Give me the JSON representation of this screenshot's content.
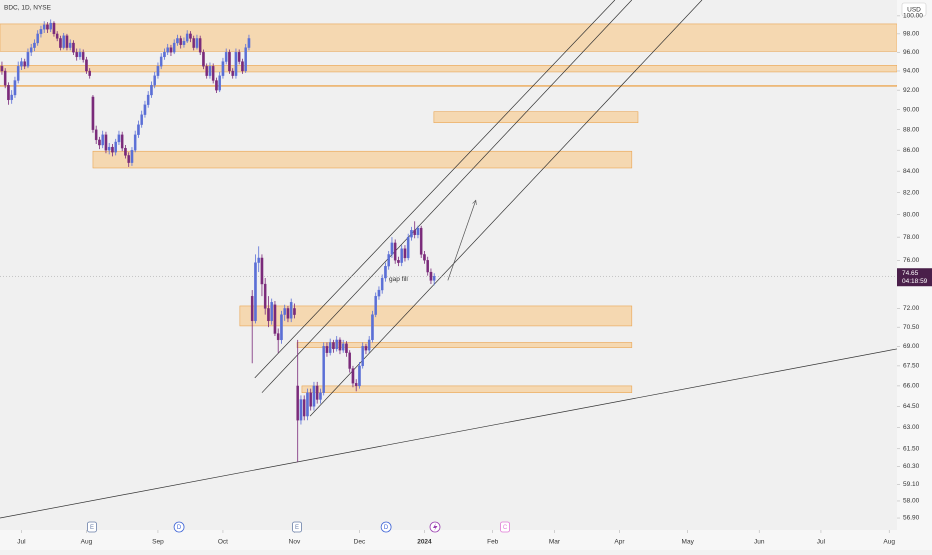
{
  "chart_data": {
    "type": "candlestick",
    "title": "BDC, 1D, NYSE",
    "currency": "USD",
    "log_scale": true,
    "ylim": [
      56.14,
      101.8
    ],
    "yticks": [
      {
        "value": 100,
        "label": "100.00"
      },
      {
        "value": 98,
        "label": "98.00"
      },
      {
        "value": 96,
        "label": "96.00"
      },
      {
        "value": 94,
        "label": "94.00"
      },
      {
        "value": 92,
        "label": "92.00"
      },
      {
        "value": 90,
        "label": "90.00"
      },
      {
        "value": 88,
        "label": "88.00"
      },
      {
        "value": 86,
        "label": "86.00"
      },
      {
        "value": 84,
        "label": "84.00"
      },
      {
        "value": 82,
        "label": "82.00"
      },
      {
        "value": 80,
        "label": "80.00"
      },
      {
        "value": 78,
        "label": "78.00"
      },
      {
        "value": 76,
        "label": "76.00"
      },
      {
        "value": 72,
        "label": "72.00"
      },
      {
        "value": 70.5,
        "label": "70.50"
      },
      {
        "value": 69,
        "label": "69.00"
      },
      {
        "value": 67.5,
        "label": "67.50"
      },
      {
        "value": 66,
        "label": "66.00"
      },
      {
        "value": 64.5,
        "label": "64.50"
      },
      {
        "value": 63,
        "label": "63.00"
      },
      {
        "value": 61.5,
        "label": "61.50"
      },
      {
        "value": 60.3,
        "label": "60.30"
      },
      {
        "value": 59.1,
        "label": "59.10"
      },
      {
        "value": 58,
        "label": "58.00"
      },
      {
        "value": 56.9,
        "label": "56.90"
      }
    ],
    "xlim": [
      -0.6,
      275.4
    ],
    "xticks": [
      {
        "value": 6,
        "label": "Jul"
      },
      {
        "value": 26,
        "label": "Aug"
      },
      {
        "value": 48,
        "label": "Sep"
      },
      {
        "value": 68,
        "label": "Oct"
      },
      {
        "value": 90,
        "label": "Nov"
      },
      {
        "value": 110,
        "label": "Dec"
      },
      {
        "value": 130,
        "label": "2024"
      },
      {
        "value": 151,
        "label": "Feb"
      },
      {
        "value": 170,
        "label": "Mar"
      },
      {
        "value": 190,
        "label": "Apr"
      },
      {
        "value": 211,
        "label": "May"
      },
      {
        "value": 233,
        "label": "Jun"
      },
      {
        "value": 252,
        "label": "Jul"
      },
      {
        "value": 273,
        "label": "Aug"
      }
    ],
    "up_color": "#5b6fd6",
    "down_color": "#7a2a7a",
    "ohlc": [
      [
        94.5,
        95,
        93.6,
        94
      ],
      [
        94,
        94.3,
        92.2,
        92.5
      ],
      [
        92.5,
        92.8,
        90.5,
        91
      ],
      [
        91,
        92,
        90.6,
        91.5
      ],
      [
        91.5,
        93.4,
        91.2,
        93
      ],
      [
        93,
        95,
        92.7,
        94.5
      ],
      [
        94.5,
        95.4,
        94.1,
        95
      ],
      [
        95,
        95.3,
        94.2,
        94.5
      ],
      [
        94.5,
        96.4,
        94.3,
        96
      ],
      [
        96,
        96.9,
        95.6,
        96.5
      ],
      [
        96.5,
        97.4,
        96.1,
        97
      ],
      [
        97,
        98.4,
        96.7,
        98
      ],
      [
        98,
        98.9,
        97.6,
        98.5
      ],
      [
        98.5,
        99.4,
        98.1,
        99
      ],
      [
        99,
        99.3,
        98.1,
        98.5
      ],
      [
        98.5,
        99.6,
        98.2,
        99.2
      ],
      [
        99.2,
        99.4,
        97.7,
        98
      ],
      [
        98,
        98.3,
        97.2,
        97.5
      ],
      [
        97.5,
        97.8,
        96.2,
        96.5
      ],
      [
        96.5,
        98.1,
        96.3,
        97.8
      ],
      [
        97.8,
        98,
        96.2,
        96.5
      ],
      [
        96.5,
        97.4,
        96.2,
        97
      ],
      [
        97,
        97.3,
        95.7,
        96
      ],
      [
        96,
        96.4,
        95.1,
        95.5
      ],
      [
        95.5,
        96.4,
        95.2,
        96
      ],
      [
        96,
        96.3,
        94.9,
        95.2
      ],
      [
        95.2,
        95.5,
        93.7,
        94
      ],
      [
        94,
        94.3,
        93.2,
        93.5
      ],
      [
        91.3,
        91.5,
        87.7,
        88
      ],
      [
        88,
        88.4,
        86.6,
        87
      ],
      [
        87,
        87.3,
        86.1,
        86.5
      ],
      [
        86.5,
        87.9,
        86.2,
        87.5
      ],
      [
        87.5,
        87.8,
        85.7,
        86
      ],
      [
        86,
        86.7,
        85.6,
        86.3
      ],
      [
        86.3,
        86.6,
        85.4,
        85.8
      ],
      [
        85.8,
        87.1,
        85.5,
        86.8
      ],
      [
        86.8,
        87.9,
        86.5,
        87.5
      ],
      [
        87.5,
        87.8,
        85.9,
        86.2
      ],
      [
        86.2,
        86.5,
        85.2,
        85.5
      ],
      [
        85.5,
        85.8,
        84.4,
        84.8
      ],
      [
        84.8,
        86.3,
        84.5,
        86
      ],
      [
        86,
        87.9,
        85.8,
        87.5
      ],
      [
        87.5,
        88.9,
        87.2,
        88.5
      ],
      [
        88.5,
        89.9,
        88.2,
        89.5
      ],
      [
        89.5,
        90.9,
        89.2,
        90.5
      ],
      [
        90.5,
        91.9,
        90.2,
        91.5
      ],
      [
        91.5,
        92.9,
        91.2,
        92.5
      ],
      [
        92.5,
        93.9,
        92.2,
        93.5
      ],
      [
        93.5,
        94.9,
        93.2,
        94.5
      ],
      [
        94.5,
        95.9,
        94.2,
        95.5
      ],
      [
        95.5,
        96.4,
        95.2,
        96
      ],
      [
        96,
        96.9,
        95.7,
        96.5
      ],
      [
        96.5,
        96.8,
        95.6,
        96
      ],
      [
        96,
        97.4,
        95.8,
        97
      ],
      [
        97,
        97.9,
        96.7,
        97.5
      ],
      [
        97.5,
        97.8,
        96.4,
        96.8
      ],
      [
        96.8,
        97.6,
        96.5,
        97.2
      ],
      [
        97.2,
        98.4,
        97,
        98
      ],
      [
        98,
        98.3,
        97.1,
        97.5
      ],
      [
        97.5,
        97.8,
        96.2,
        96.5
      ],
      [
        96.5,
        97.9,
        96.3,
        97.5
      ],
      [
        97.5,
        97.8,
        95.7,
        96
      ],
      [
        96,
        96.3,
        94.2,
        94.5
      ],
      [
        94.5,
        94.8,
        93.2,
        93.5
      ],
      [
        93.5,
        94.9,
        93.2,
        94.5
      ],
      [
        94.5,
        94.8,
        92.7,
        93
      ],
      [
        93,
        93.3,
        91.7,
        92
      ],
      [
        92,
        93.9,
        91.8,
        93.5
      ],
      [
        93.5,
        95.4,
        93.2,
        95
      ],
      [
        95,
        96.4,
        94.7,
        96
      ],
      [
        96,
        96.3,
        93.7,
        94
      ],
      [
        94,
        94.3,
        93.2,
        93.5
      ],
      [
        93.5,
        96.4,
        93.2,
        96
      ],
      [
        96,
        96.3,
        94.7,
        95
      ],
      [
        95,
        95.3,
        93.7,
        94
      ],
      [
        94,
        96.9,
        93.8,
        96.5
      ],
      [
        96.5,
        97.9,
        96.2,
        97.5
      ],
      [
        73,
        73.5,
        67.7,
        71
      ],
      [
        71,
        76.5,
        70.8,
        75.8
      ],
      [
        75.8,
        77.2,
        75,
        76.2
      ],
      [
        76.2,
        76.5,
        73,
        74
      ],
      [
        74,
        74.5,
        71.5,
        72
      ],
      [
        72,
        73,
        70.5,
        71
      ],
      [
        71,
        72.8,
        70.7,
        72.5
      ],
      [
        72.3,
        72.6,
        69.8,
        70
      ],
      [
        70,
        70.4,
        68.5,
        69.5
      ],
      [
        69.5,
        71.8,
        69.2,
        71.5
      ],
      [
        71.5,
        72.3,
        71,
        72
      ],
      [
        72,
        72.2,
        70.9,
        71.2
      ],
      [
        71.2,
        72.8,
        70.9,
        72.5
      ],
      [
        72,
        72.4,
        71.2,
        71.5
      ],
      [
        66,
        69.5,
        60.6,
        63.5
      ],
      [
        63.5,
        65.3,
        63.2,
        65
      ],
      [
        65,
        65.3,
        63.5,
        63.8
      ],
      [
        63.8,
        65.8,
        63.5,
        65.5
      ],
      [
        65.5,
        65.8,
        64.2,
        64.5
      ],
      [
        64.5,
        66.3,
        64.2,
        66
      ],
      [
        66,
        66.3,
        64.7,
        65
      ],
      [
        65,
        65.8,
        64.7,
        65.5
      ],
      [
        65.5,
        69.3,
        65.3,
        69
      ],
      [
        69,
        69.3,
        68.2,
        68.5
      ],
      [
        68.5,
        69.6,
        68.3,
        69.3
      ],
      [
        69.3,
        69.5,
        68.5,
        68.8
      ],
      [
        68.8,
        69.8,
        68.6,
        69.5
      ],
      [
        69.5,
        69.7,
        68.4,
        68.7
      ],
      [
        68.7,
        69.5,
        68.5,
        69.2
      ],
      [
        69.2,
        69.4,
        68.2,
        68.5
      ],
      [
        68.5,
        68.7,
        67,
        67.3
      ],
      [
        67.3,
        67.5,
        65.9,
        66.2
      ],
      [
        66.2,
        66.5,
        65.6,
        66
      ],
      [
        66,
        67.8,
        65.8,
        67.5
      ],
      [
        67.5,
        69.3,
        67.3,
        69
      ],
      [
        69,
        69.2,
        68.4,
        68.7
      ],
      [
        68.7,
        69.8,
        68.5,
        69.5
      ],
      [
        69.5,
        71.8,
        69.3,
        71.5
      ],
      [
        71.5,
        73.3,
        71.3,
        73
      ],
      [
        73,
        73.8,
        72.7,
        73.5
      ],
      [
        73.5,
        74.8,
        73.2,
        74.5
      ],
      [
        74.5,
        75.8,
        74.2,
        75.5
      ],
      [
        75.5,
        76.8,
        75.2,
        76.5
      ],
      [
        76.5,
        78,
        76.2,
        77.5
      ],
      [
        77.5,
        77.8,
        75.7,
        76
      ],
      [
        76,
        76.3,
        75.5,
        75.8
      ],
      [
        75.8,
        77.3,
        75.5,
        77
      ],
      [
        77,
        77.3,
        75.9,
        76.2
      ],
      [
        76.2,
        78.3,
        76,
        78
      ],
      [
        78,
        78.9,
        77.7,
        78.6
      ],
      [
        78.6,
        79.4,
        77.9,
        78.2
      ],
      [
        78.2,
        79,
        77.9,
        78.8
      ],
      [
        78.8,
        79,
        76.2,
        76.5
      ],
      [
        76.5,
        76.8,
        75.7,
        76
      ],
      [
        76,
        76.3,
        74.7,
        75
      ],
      [
        75,
        75.3,
        74,
        74.3
      ],
      [
        74.3,
        74.9,
        73.9,
        74.65
      ]
    ],
    "last_price": {
      "value": 74.65,
      "label": "74.65"
    },
    "countdown": "04:18:59",
    "last_price_color": "#4a1f4a",
    "zone_color": "#f6d3a6",
    "zone_border": "#e9a553",
    "zones": [
      {
        "x": [
          -0.6,
          275.4
        ],
        "y": [
          96.1,
          99.1
        ]
      },
      {
        "x": [
          -0.6,
          275.4
        ],
        "y": [
          93.9,
          94.6
        ]
      },
      {
        "x": [
          -0.6,
          275.4
        ],
        "y": [
          92.4,
          92.5
        ]
      },
      {
        "x": [
          132.9,
          195.7
        ],
        "y": [
          88.7,
          89.8
        ]
      },
      {
        "x": [
          28,
          193.8
        ],
        "y": [
          84.3,
          85.9
        ]
      },
      {
        "x": [
          73.2,
          193.8
        ],
        "y": [
          70.6,
          72.2
        ]
      },
      {
        "x": [
          90.8,
          193.8
        ],
        "y": [
          68.9,
          69.3
        ]
      },
      {
        "x": [
          92.3,
          193.8
        ],
        "y": [
          65.5,
          66.0
        ]
      }
    ],
    "trendlines": [
      {
        "x": [
          -0.6,
          275.4
        ],
        "y": [
          56.9,
          68.8
        ]
      },
      {
        "x": [
          77.8,
          188.6
        ],
        "y": [
          66.6,
          101.8
        ]
      },
      {
        "x": [
          80,
          193.8
        ],
        "y": [
          65.5,
          101.8
        ]
      },
      {
        "x": [
          94.8,
          215.4
        ],
        "y": [
          63.8,
          101.8
        ]
      }
    ],
    "arrow": {
      "x": [
        137.2,
        145.8
      ],
      "y": [
        74.3,
        81.3
      ]
    },
    "annotation": {
      "text": "gap fill",
      "x": 122,
      "y": 74.4
    },
    "events": [
      {
        "label": "E",
        "x": 27.7
      },
      {
        "label": "D",
        "x": 54.5
      },
      {
        "label": "E",
        "x": 90.8
      },
      {
        "label": "D",
        "x": 118.2
      },
      {
        "label": "C",
        "x": 154.8
      }
    ]
  }
}
